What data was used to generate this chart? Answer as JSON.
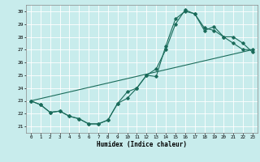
{
  "title": "",
  "xlabel": "Humidex (Indice chaleur)",
  "ylabel": "",
  "xlim": [
    -0.5,
    23.5
  ],
  "ylim": [
    20.5,
    30.5
  ],
  "xticks": [
    0,
    1,
    2,
    3,
    4,
    5,
    6,
    7,
    8,
    9,
    10,
    11,
    12,
    13,
    14,
    15,
    16,
    17,
    18,
    19,
    20,
    21,
    22,
    23
  ],
  "yticks": [
    21,
    22,
    23,
    24,
    25,
    26,
    27,
    28,
    29,
    30
  ],
  "bg_color": "#c8ecec",
  "grid_color": "#ffffff",
  "line_color": "#1a6b5a",
  "line1_x": [
    0,
    1,
    2,
    3,
    4,
    5,
    6,
    7,
    8,
    9,
    10,
    11,
    12,
    13,
    14,
    15,
    16,
    17,
    18,
    19,
    20,
    21,
    22,
    23
  ],
  "line1_y": [
    23.0,
    22.7,
    22.1,
    22.2,
    21.8,
    21.6,
    21.2,
    21.2,
    21.5,
    22.8,
    23.7,
    24.0,
    25.0,
    24.9,
    27.3,
    29.4,
    30.0,
    29.8,
    28.5,
    28.8,
    28.0,
    27.5,
    27.0,
    27.0
  ],
  "line2_x": [
    0,
    1,
    2,
    3,
    4,
    5,
    6,
    7,
    8,
    9,
    10,
    11,
    12,
    13,
    14,
    15,
    16,
    17,
    18,
    19,
    20,
    21,
    22,
    23
  ],
  "line2_y": [
    23.0,
    22.7,
    22.1,
    22.2,
    21.8,
    21.6,
    21.2,
    21.2,
    21.5,
    22.8,
    23.2,
    24.0,
    25.0,
    25.5,
    27.0,
    29.0,
    30.1,
    29.8,
    28.7,
    28.5,
    28.0,
    28.0,
    27.5,
    26.8
  ],
  "line3_x": [
    0,
    23
  ],
  "line3_y": [
    23.0,
    27.0
  ]
}
